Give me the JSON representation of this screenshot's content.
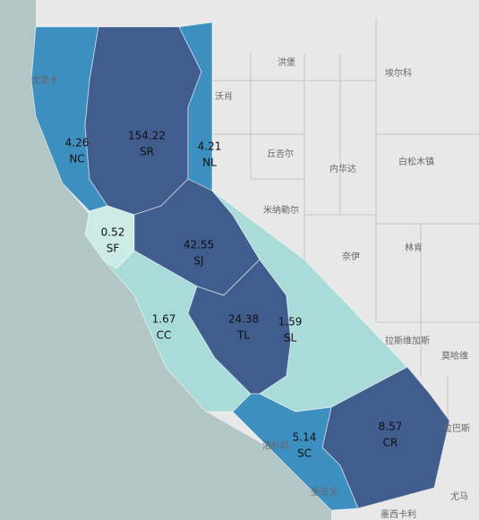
{
  "map": {
    "regions": [
      {
        "code": "NC",
        "value": 4.26,
        "color": "#3d8fc0"
      },
      {
        "code": "SR",
        "value": 154.22,
        "color": "#405d8e"
      },
      {
        "code": "NL",
        "value": 4.21,
        "color": "#3d8fc0"
      },
      {
        "code": "SF",
        "value": 0.52,
        "color": "#cdebe6"
      },
      {
        "code": "SJ",
        "value": 42.55,
        "color": "#405d8e"
      },
      {
        "code": "CC",
        "value": 1.67,
        "color": "#a9dcd9"
      },
      {
        "code": "TL",
        "value": 24.38,
        "color": "#405d8e"
      },
      {
        "code": "SL",
        "value": 1.59,
        "color": "#a9dcd9"
      },
      {
        "code": "CR",
        "value": 8.57,
        "color": "#405d8e"
      },
      {
        "code": "SC",
        "value": 5.14,
        "color": "#3d8fc0"
      }
    ],
    "place_labels": [
      "尤里卡",
      "沃肖",
      "洪堡",
      "埃尔科",
      "丘吉尔",
      "内华达",
      "白松木镇",
      "米纳勒尔",
      "奈伊",
      "林肯",
      "拉斯维加斯",
      "莫哈维",
      "拉巴斯",
      "尤马",
      "墨西卡利",
      "洛杉矶",
      "圣迭戈"
    ]
  }
}
